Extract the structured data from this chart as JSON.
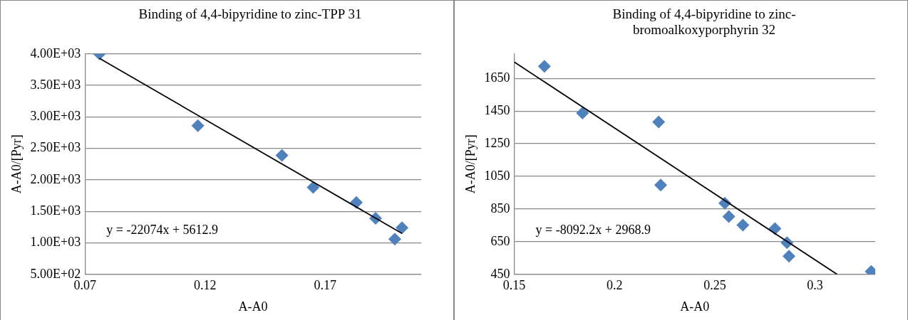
{
  "chart_data": [
    {
      "type": "scatter",
      "title": "Binding of 4,4-bipyridine to zinc-TPP 31",
      "xlabel": "A-A0",
      "ylabel": "A-A0/[Pyr]",
      "xlim": [
        0.07,
        0.21
      ],
      "xticks": [
        0.07,
        0.12,
        0.17
      ],
      "ylim": [
        500,
        4000
      ],
      "yticks": [
        {
          "value": 500,
          "label": "5.00E+02"
        },
        {
          "value": 1000,
          "label": "1.00E+03"
        },
        {
          "value": 1500,
          "label": "1.50E+03"
        },
        {
          "value": 2000,
          "label": "2.00E+03"
        },
        {
          "value": 2500,
          "label": "2.50E+03"
        },
        {
          "value": 3000,
          "label": "3.00E+03"
        },
        {
          "value": 3500,
          "label": "3.50E+03"
        },
        {
          "value": 4000,
          "label": "4.00E+03"
        }
      ],
      "grid": "y",
      "legend": false,
      "series": [
        {
          "marker": "diamond",
          "color": "#4f81bd",
          "x": [
            0.076,
            0.117,
            0.152,
            0.165,
            0.183,
            0.191,
            0.199,
            0.202
          ],
          "values": [
            4000,
            2860,
            2390,
            1880,
            1640,
            1390,
            1060,
            1240
          ]
        },
        {
          "type": "line",
          "marker": "none",
          "color": "#000000",
          "x": [
            0.076,
            0.202
          ],
          "values": [
            3930,
            1150
          ]
        }
      ],
      "annotations": [
        "y = -22074x + 5612.9"
      ]
    },
    {
      "type": "scatter",
      "title": "Binding of 4,4-bipyridine to zinc-bromoalkoxyporphyrin 32",
      "xlabel": "A-A0",
      "ylabel": "A-A0/[Pyr]",
      "xlim": [
        0.15,
        0.33
      ],
      "xticks": [
        0.15,
        0.2,
        0.25,
        0.3
      ],
      "ylim": [
        450,
        1800
      ],
      "yticks": [
        450,
        650,
        850,
        1050,
        1250,
        1450,
        1650
      ],
      "grid": "y",
      "legend": false,
      "series": [
        {
          "marker": "diamond",
          "color": "#4f81bd",
          "x": [
            0.165,
            0.184,
            0.222,
            0.223,
            0.255,
            0.257,
            0.264,
            0.28,
            0.286,
            0.287,
            0.328
          ],
          "values": [
            1724,
            1438,
            1383,
            997,
            886,
            804,
            752,
            730,
            644,
            561,
            468
          ]
        },
        {
          "type": "line",
          "marker": "none",
          "color": "#000000",
          "x": [
            0.15,
            0.311
          ],
          "values": [
            1750,
            450
          ]
        }
      ],
      "annotations": [
        "y = -8092.2x + 2968.9"
      ]
    }
  ]
}
